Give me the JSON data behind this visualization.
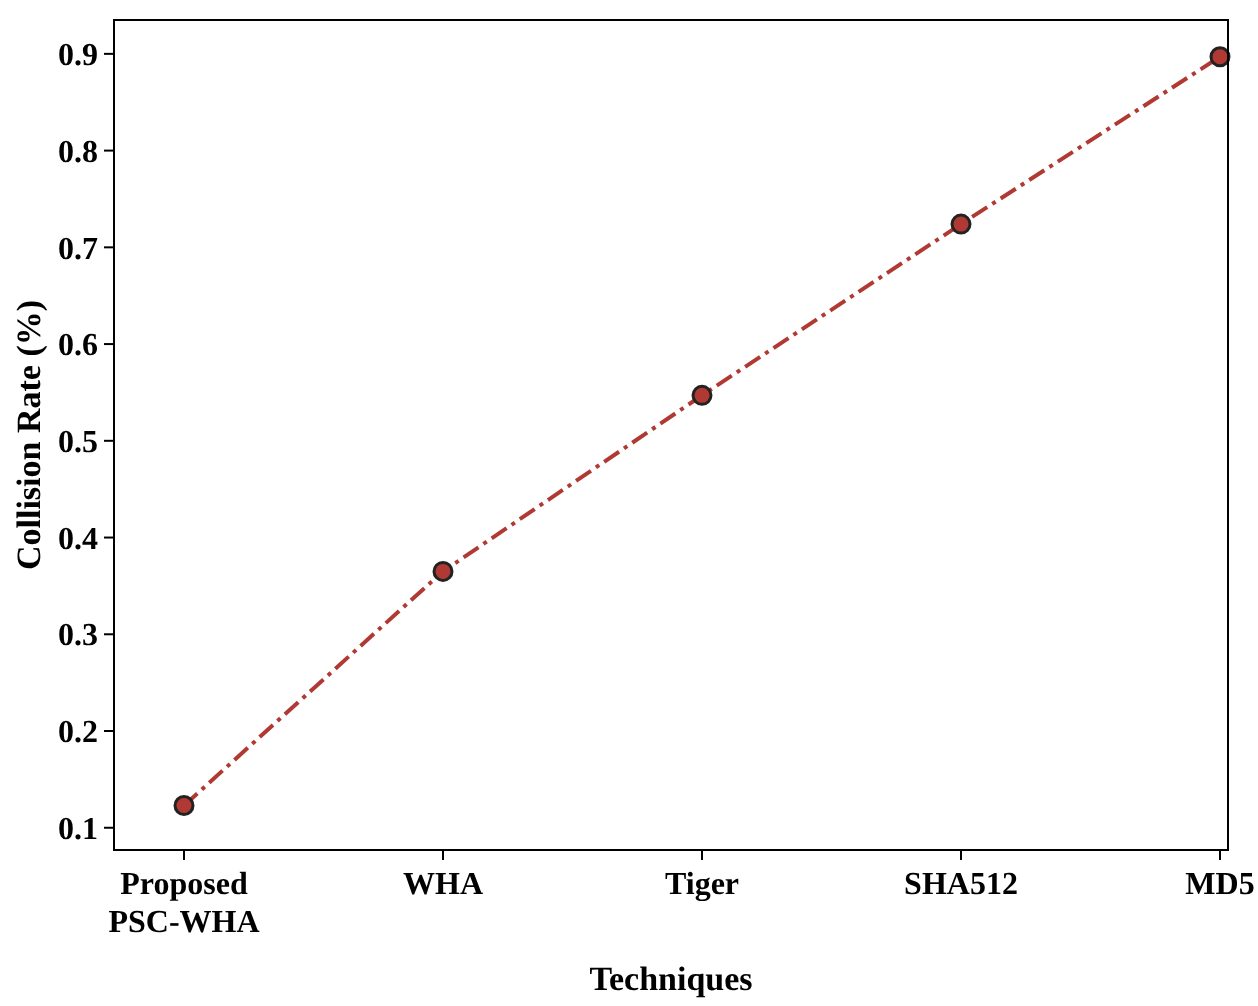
{
  "chart_data": {
    "type": "line",
    "xlabel": "Techniques",
    "ylabel": "Collision Rate (%)",
    "categories": [
      "Proposed\nPSC-WHA",
      "WHA",
      "Tiger",
      "SHA512",
      "MD5"
    ],
    "series": [
      {
        "color": "#b03a33",
        "values": [
          0.123,
          0.365,
          0.547,
          0.724,
          0.897
        ]
      }
    ],
    "ylim": [
      0.077,
      0.935
    ],
    "yticks": [
      0.1,
      0.2,
      0.3,
      0.4,
      0.5,
      0.6,
      0.7,
      0.8,
      0.9
    ],
    "grid": false,
    "marker": "circle",
    "line_style": "dashdot"
  }
}
